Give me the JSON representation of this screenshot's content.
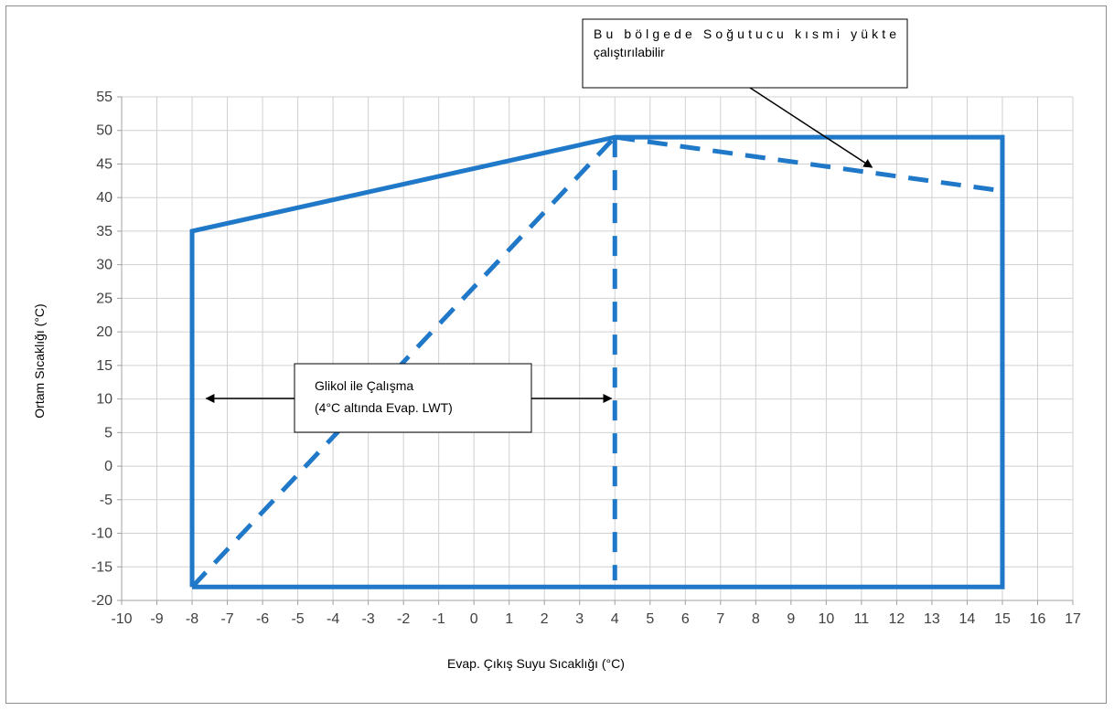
{
  "colors": {
    "envelope": "#1f78c8",
    "grid": "#d0d0d0",
    "box_border": "#000000",
    "frame": "#8c8c8c"
  },
  "chart_data": {
    "type": "line",
    "xlabel": "Evap. Çıkış Suyu Sıcaklığı (°C)",
    "ylabel": "Ortam Sıcaklığı (°C)",
    "xlim": [
      -10,
      17
    ],
    "ylim": [
      -20,
      55
    ],
    "x_ticks": [
      "-10",
      "-9",
      "-8",
      "-7",
      "-6",
      "-5",
      "-4",
      "-3",
      "-2",
      "-1",
      "0",
      "1",
      "2",
      "3",
      "4",
      "5",
      "6",
      "7",
      "8",
      "9",
      "10",
      "11",
      "12",
      "13",
      "14",
      "15",
      "16",
      "17"
    ],
    "y_ticks": [
      "-20",
      "-15",
      "-10",
      "-5",
      "0",
      "5",
      "10",
      "15",
      "20",
      "25",
      "30",
      "35",
      "40",
      "45",
      "50",
      "55"
    ],
    "grid": true,
    "series": [
      {
        "style": "solid",
        "x": [
          -8,
          -8,
          4,
          15,
          15,
          -8
        ],
        "y": [
          -18,
          35,
          49,
          49,
          -18,
          -18
        ]
      },
      {
        "style": "dashed",
        "x": [
          -8,
          4
        ],
        "y": [
          -18,
          49
        ]
      },
      {
        "style": "dashed",
        "x": [
          4,
          4
        ],
        "y": [
          49,
          -17
        ]
      },
      {
        "style": "dashed",
        "x": [
          4,
          15
        ],
        "y": [
          49,
          41
        ]
      }
    ],
    "annotations": [
      {
        "id": "partial-load",
        "lines": [
          "Bu bölgede Soğutucu kısmi yükte",
          "çalıştırılabilir"
        ]
      },
      {
        "id": "glycol",
        "lines": [
          "Glikol ile Çalışma",
          "(4°C altında Evap. LWT)"
        ]
      }
    ]
  }
}
